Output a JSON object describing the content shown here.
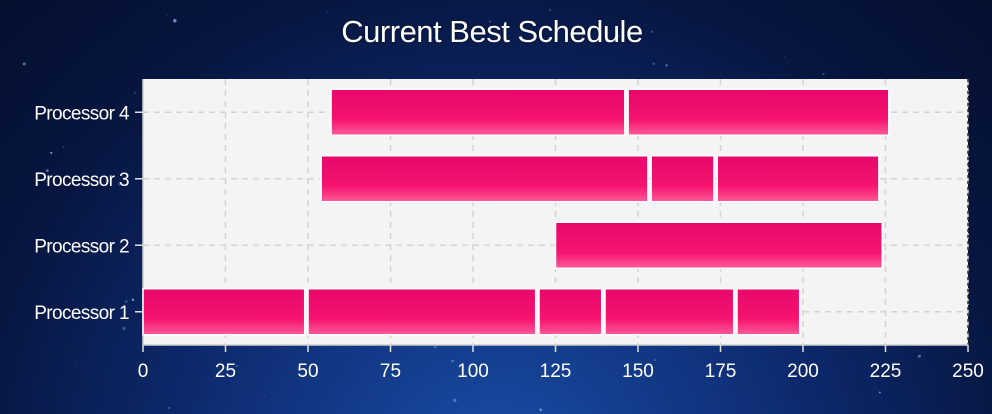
{
  "chart_data": {
    "type": "bar",
    "orientation": "horizontal",
    "title": "Current Best Schedule",
    "xlabel": "",
    "ylabel": "",
    "xlim": [
      0,
      250
    ],
    "xticks": [
      0,
      25,
      50,
      75,
      100,
      125,
      150,
      175,
      200,
      225,
      250
    ],
    "categories": [
      "Processor 4",
      "Processor 3",
      "Processor 2",
      "Processor 1"
    ],
    "tasks": [
      {
        "category": "Processor 4",
        "start": 57,
        "end": 146
      },
      {
        "category": "Processor 4",
        "start": 147,
        "end": 226
      },
      {
        "category": "Processor 3",
        "start": 54,
        "end": 153
      },
      {
        "category": "Processor 3",
        "start": 154,
        "end": 173
      },
      {
        "category": "Processor 3",
        "start": 174,
        "end": 223
      },
      {
        "category": "Processor 2",
        "start": 125,
        "end": 224
      },
      {
        "category": "Processor 1",
        "start": 0,
        "end": 49
      },
      {
        "category": "Processor 1",
        "start": 50,
        "end": 119
      },
      {
        "category": "Processor 1",
        "start": 120,
        "end": 139
      },
      {
        "category": "Processor 1",
        "start": 140,
        "end": 179
      },
      {
        "category": "Processor 1",
        "start": 180,
        "end": 199
      }
    ],
    "grid": true,
    "colors": {
      "bar_top": "#e8086a",
      "bar_bottom": "#ff5a9a",
      "plot_background": "#f4f4f4",
      "grid": "#d4d4d4"
    }
  }
}
